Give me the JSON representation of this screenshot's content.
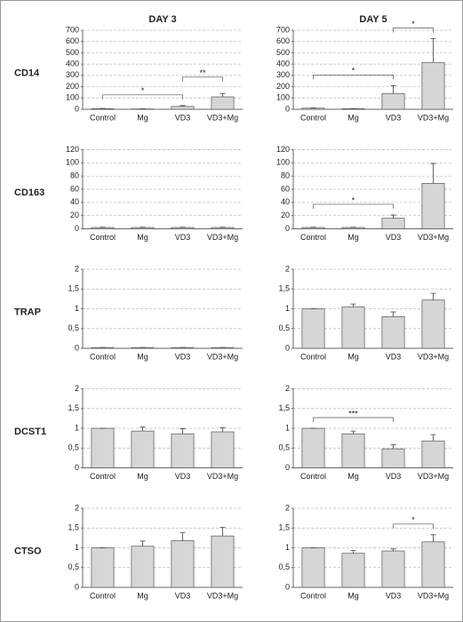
{
  "columns": [
    "DAY 3",
    "DAY 5"
  ],
  "rows": [
    "CD14",
    "CD163",
    "TRAP",
    "DCST1",
    "CTSO"
  ],
  "chart_data": [
    {
      "type": "bar",
      "categories": [
        "Control",
        "Mg",
        "VD3",
        "VD3+Mg"
      ],
      "values": [
        5,
        3,
        25,
        110
      ],
      "errors": [
        3,
        2,
        8,
        30
      ],
      "color": "#d6d6d6",
      "ylim": [
        0,
        700
      ],
      "yticks": [
        0,
        100,
        200,
        300,
        400,
        500,
        600,
        700
      ],
      "grid": true,
      "annotations": [
        {
          "label": "*",
          "from": 0,
          "to": 2
        },
        {
          "label": "**",
          "from": 2,
          "to": 3
        }
      ]
    },
    {
      "type": "bar",
      "categories": [
        "Control",
        "Mg",
        "VD3",
        "VD3+Mg"
      ],
      "values": [
        10,
        5,
        140,
        415
      ],
      "errors": [
        3,
        2,
        70,
        210
      ],
      "color": "#d6d6d6",
      "ylim": [
        0,
        700
      ],
      "yticks": [
        0,
        100,
        200,
        300,
        400,
        500,
        600,
        700
      ],
      "grid": true,
      "annotations": [
        {
          "label": "*",
          "from": 0,
          "to": 2
        },
        {
          "label": "*",
          "from": 2,
          "to": 3
        }
      ]
    },
    {
      "type": "bar",
      "categories": [
        "Control",
        "Mg",
        "VD3",
        "VD3+Mg"
      ],
      "values": [
        2,
        2,
        2,
        2
      ],
      "errors": [
        0.5,
        0.5,
        0.5,
        0.5
      ],
      "color": "#d6d6d6",
      "ylim": [
        0,
        120
      ],
      "yticks": [
        0,
        20,
        40,
        60,
        80,
        100,
        120
      ],
      "grid": true,
      "annotations": []
    },
    {
      "type": "bar",
      "categories": [
        "Control",
        "Mg",
        "VD3",
        "VD3+Mg"
      ],
      "values": [
        2,
        2,
        16,
        69
      ],
      "errors": [
        0.5,
        0.5,
        5,
        30
      ],
      "color": "#d6d6d6",
      "ylim": [
        0,
        120
      ],
      "yticks": [
        0,
        20,
        40,
        60,
        80,
        100,
        120
      ],
      "grid": true,
      "annotations": [
        {
          "label": "*",
          "from": 0,
          "to": 2
        }
      ]
    },
    {
      "type": "bar",
      "categories": [
        "Control",
        "Mg",
        "VD3",
        "VD3+Mg"
      ],
      "values": [
        0.02,
        0.02,
        0.02,
        0.02
      ],
      "errors": [
        0,
        0,
        0,
        0
      ],
      "color": "#d6d6d6",
      "ylim": [
        0,
        2
      ],
      "yticks": [
        0,
        {
          "value": 0.5,
          "label": "0,5"
        },
        1,
        {
          "value": 1.5,
          "label": "1,5"
        },
        2
      ],
      "grid": true,
      "annotations": []
    },
    {
      "type": "bar",
      "categories": [
        "Control",
        "Mg",
        "VD3",
        "VD3+Mg"
      ],
      "values": [
        1,
        1.05,
        0.8,
        1.22
      ],
      "errors": [
        0,
        0.07,
        0.12,
        0.17
      ],
      "color": "#d6d6d6",
      "ylim": [
        0,
        2
      ],
      "yticks": [
        0,
        {
          "value": 0.5,
          "label": "0,5"
        },
        1,
        {
          "value": 1.5,
          "label": "1,5"
        },
        2
      ],
      "grid": true,
      "annotations": []
    },
    {
      "type": "bar",
      "categories": [
        "Control",
        "Mg",
        "VD3",
        "VD3+Mg"
      ],
      "values": [
        1,
        0.93,
        0.86,
        0.91
      ],
      "errors": [
        0,
        0.1,
        0.13,
        0.1
      ],
      "color": "#d6d6d6",
      "ylim": [
        0,
        2
      ],
      "yticks": [
        0,
        {
          "value": 0.5,
          "label": "0,5"
        },
        1,
        {
          "value": 1.5,
          "label": "1,5"
        },
        2
      ],
      "grid": true,
      "annotations": []
    },
    {
      "type": "bar",
      "categories": [
        "Control",
        "Mg",
        "VD3",
        "VD3+Mg"
      ],
      "values": [
        1,
        0.86,
        0.48,
        0.68
      ],
      "errors": [
        0,
        0.07,
        0.1,
        0.16
      ],
      "color": "#d6d6d6",
      "ylim": [
        0,
        2
      ],
      "yticks": [
        0,
        {
          "value": 0.5,
          "label": "0,5"
        },
        1,
        {
          "value": 1.5,
          "label": "1,5"
        },
        2
      ],
      "grid": true,
      "annotations": [
        {
          "label": "***",
          "from": 0,
          "to": 2
        }
      ]
    },
    {
      "type": "bar",
      "categories": [
        "Control",
        "Mg",
        "VD3",
        "VD3+Mg"
      ],
      "values": [
        1,
        1.04,
        1.18,
        1.3
      ],
      "errors": [
        0,
        0.13,
        0.2,
        0.22
      ],
      "color": "#d6d6d6",
      "ylim": [
        0,
        2
      ],
      "yticks": [
        0,
        {
          "value": 0.5,
          "label": "0,5"
        },
        1,
        {
          "value": 1.5,
          "label": "1,5"
        },
        2
      ],
      "grid": true,
      "annotations": []
    },
    {
      "type": "bar",
      "categories": [
        "Control",
        "Mg",
        "VD3",
        "VD3+Mg"
      ],
      "values": [
        1,
        0.86,
        0.92,
        1.15
      ],
      "errors": [
        0,
        0.07,
        0.05,
        0.18
      ],
      "color": "#d6d6d6",
      "ylim": [
        0,
        2
      ],
      "yticks": [
        0,
        {
          "value": 0.5,
          "label": "0,5"
        },
        1,
        {
          "value": 1.5,
          "label": "1,5"
        },
        2
      ],
      "grid": true,
      "annotations": [
        {
          "label": "*",
          "from": 2,
          "to": 3
        }
      ]
    }
  ]
}
